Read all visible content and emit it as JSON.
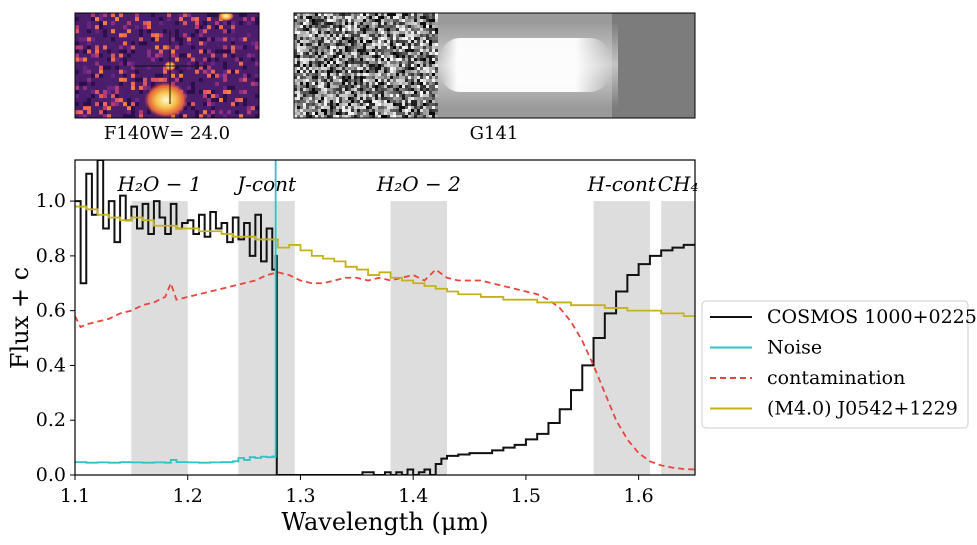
{
  "thumbnails": {
    "image_label": "F140W= 24.0",
    "spectrum_label": "G141"
  },
  "chart_data": {
    "type": "line",
    "xlabel": "Wavelength (μm)",
    "ylabel": "Flux + c",
    "xlim": [
      1.1,
      1.65
    ],
    "ylim": [
      0.0,
      1.15
    ],
    "x_ticks": [
      "1.1",
      "1.2",
      "1.3",
      "1.4",
      "1.5",
      "1.6"
    ],
    "y_ticks": [
      "0.0",
      "0.2",
      "0.4",
      "0.6",
      "0.8",
      "1.0"
    ],
    "bands": [
      {
        "label": "H₂O − 1",
        "x0": 1.15,
        "x1": 1.2
      },
      {
        "label": "J-cont",
        "x0": 1.245,
        "x1": 1.295
      },
      {
        "label": "H₂O − 2",
        "x0": 1.38,
        "x1": 1.43
      },
      {
        "label": "H-cont",
        "x0": 1.56,
        "x1": 1.61
      },
      {
        "label": "CH₄",
        "x0": 1.62,
        "x1": 1.65
      }
    ],
    "legend_position": "center-right outside",
    "series": [
      {
        "name": "COSMOS 1000+0225",
        "color": "#111111",
        "style": "step",
        "x": [
          1.1,
          1.105,
          1.11,
          1.115,
          1.12,
          1.125,
          1.13,
          1.135,
          1.14,
          1.145,
          1.15,
          1.155,
          1.16,
          1.165,
          1.17,
          1.175,
          1.18,
          1.185,
          1.19,
          1.195,
          1.2,
          1.205,
          1.21,
          1.215,
          1.22,
          1.225,
          1.23,
          1.235,
          1.24,
          1.245,
          1.25,
          1.255,
          1.26,
          1.265,
          1.27,
          1.275,
          1.278,
          1.279,
          1.35,
          1.355,
          1.36,
          1.365,
          1.37,
          1.375,
          1.38,
          1.385,
          1.39,
          1.395,
          1.4,
          1.405,
          1.41,
          1.415,
          1.42,
          1.425,
          1.43,
          1.44,
          1.45,
          1.46,
          1.47,
          1.48,
          1.49,
          1.5,
          1.51,
          1.52,
          1.53,
          1.54,
          1.55,
          1.56,
          1.57,
          1.58,
          1.59,
          1.6,
          1.61,
          1.62,
          1.63,
          1.64,
          1.65
        ],
        "y": [
          1.0,
          0.7,
          1.1,
          0.95,
          1.15,
          0.9,
          1.0,
          0.85,
          1.02,
          0.93,
          0.98,
          0.9,
          0.99,
          0.88,
          1.0,
          0.94,
          0.88,
          0.99,
          0.9,
          0.92,
          0.93,
          0.88,
          0.95,
          0.87,
          0.96,
          0.9,
          0.92,
          0.85,
          0.94,
          0.86,
          0.92,
          0.8,
          0.95,
          0.78,
          0.9,
          0.75,
          0.8,
          0.0,
          0.0,
          0.01,
          0.01,
          0.0,
          0.0,
          0.01,
          0.0,
          0.01,
          0.0,
          0.02,
          0.0,
          0.01,
          0.02,
          0.0,
          0.04,
          0.06,
          0.07,
          0.075,
          0.08,
          0.08,
          0.09,
          0.1,
          0.11,
          0.13,
          0.15,
          0.19,
          0.24,
          0.31,
          0.4,
          0.5,
          0.59,
          0.67,
          0.73,
          0.77,
          0.8,
          0.82,
          0.83,
          0.84,
          0.845
        ]
      },
      {
        "name": "Noise",
        "color": "#2ec4c4",
        "style": "step",
        "x": [
          1.1,
          1.11,
          1.12,
          1.13,
          1.14,
          1.15,
          1.16,
          1.17,
          1.18,
          1.185,
          1.19,
          1.2,
          1.21,
          1.22,
          1.23,
          1.24,
          1.245,
          1.25,
          1.255,
          1.26,
          1.265,
          1.27,
          1.275,
          1.277,
          1.278
        ],
        "y": [
          0.047,
          0.045,
          0.046,
          0.045,
          0.047,
          0.046,
          0.045,
          0.046,
          0.045,
          0.055,
          0.047,
          0.046,
          0.045,
          0.046,
          0.047,
          0.05,
          0.062,
          0.055,
          0.065,
          0.062,
          0.067,
          0.065,
          0.068,
          0.066,
          1.15
        ]
      },
      {
        "name": "contamination",
        "color": "#e8453c",
        "style": "dashed",
        "x": [
          1.1,
          1.105,
          1.11,
          1.12,
          1.13,
          1.14,
          1.15,
          1.16,
          1.17,
          1.18,
          1.185,
          1.19,
          1.2,
          1.21,
          1.22,
          1.23,
          1.24,
          1.25,
          1.26,
          1.27,
          1.28,
          1.29,
          1.3,
          1.31,
          1.32,
          1.33,
          1.34,
          1.35,
          1.36,
          1.37,
          1.38,
          1.39,
          1.4,
          1.41,
          1.42,
          1.43,
          1.44,
          1.45,
          1.46,
          1.47,
          1.48,
          1.49,
          1.5,
          1.51,
          1.52,
          1.53,
          1.54,
          1.55,
          1.56,
          1.57,
          1.58,
          1.59,
          1.6,
          1.61,
          1.62,
          1.63,
          1.64,
          1.65
        ],
        "y": [
          0.58,
          0.54,
          0.55,
          0.56,
          0.57,
          0.59,
          0.6,
          0.62,
          0.63,
          0.65,
          0.7,
          0.64,
          0.65,
          0.66,
          0.67,
          0.68,
          0.69,
          0.7,
          0.71,
          0.73,
          0.74,
          0.73,
          0.71,
          0.7,
          0.7,
          0.71,
          0.72,
          0.72,
          0.71,
          0.72,
          0.71,
          0.72,
          0.73,
          0.71,
          0.75,
          0.72,
          0.71,
          0.71,
          0.71,
          0.7,
          0.69,
          0.68,
          0.67,
          0.66,
          0.64,
          0.61,
          0.56,
          0.49,
          0.4,
          0.3,
          0.2,
          0.13,
          0.08,
          0.05,
          0.035,
          0.027,
          0.022,
          0.02
        ]
      },
      {
        "name": "(M4.0) J0542+1229",
        "color": "#c4b21c",
        "style": "step",
        "x": [
          1.1,
          1.11,
          1.12,
          1.13,
          1.14,
          1.15,
          1.16,
          1.17,
          1.18,
          1.19,
          1.2,
          1.21,
          1.22,
          1.23,
          1.24,
          1.25,
          1.26,
          1.27,
          1.28,
          1.29,
          1.3,
          1.31,
          1.32,
          1.33,
          1.34,
          1.35,
          1.36,
          1.37,
          1.38,
          1.39,
          1.4,
          1.41,
          1.42,
          1.43,
          1.44,
          1.45,
          1.46,
          1.47,
          1.48,
          1.49,
          1.5,
          1.51,
          1.52,
          1.53,
          1.54,
          1.55,
          1.56,
          1.57,
          1.58,
          1.59,
          1.6,
          1.61,
          1.62,
          1.63,
          1.64,
          1.65
        ],
        "y": [
          0.98,
          0.97,
          0.95,
          0.94,
          0.93,
          0.94,
          0.93,
          0.91,
          0.91,
          0.9,
          0.9,
          0.89,
          0.89,
          0.88,
          0.87,
          0.87,
          0.86,
          0.86,
          0.83,
          0.84,
          0.82,
          0.8,
          0.79,
          0.78,
          0.76,
          0.75,
          0.73,
          0.74,
          0.72,
          0.71,
          0.7,
          0.69,
          0.68,
          0.67,
          0.66,
          0.66,
          0.65,
          0.65,
          0.64,
          0.64,
          0.64,
          0.63,
          0.63,
          0.63,
          0.62,
          0.62,
          0.62,
          0.61,
          0.61,
          0.6,
          0.6,
          0.6,
          0.59,
          0.59,
          0.58,
          0.58
        ]
      }
    ]
  },
  "colors": {
    "band_fill": "#dddddd",
    "axis": "#000000",
    "thumb_bg": "#4a1e6b"
  }
}
